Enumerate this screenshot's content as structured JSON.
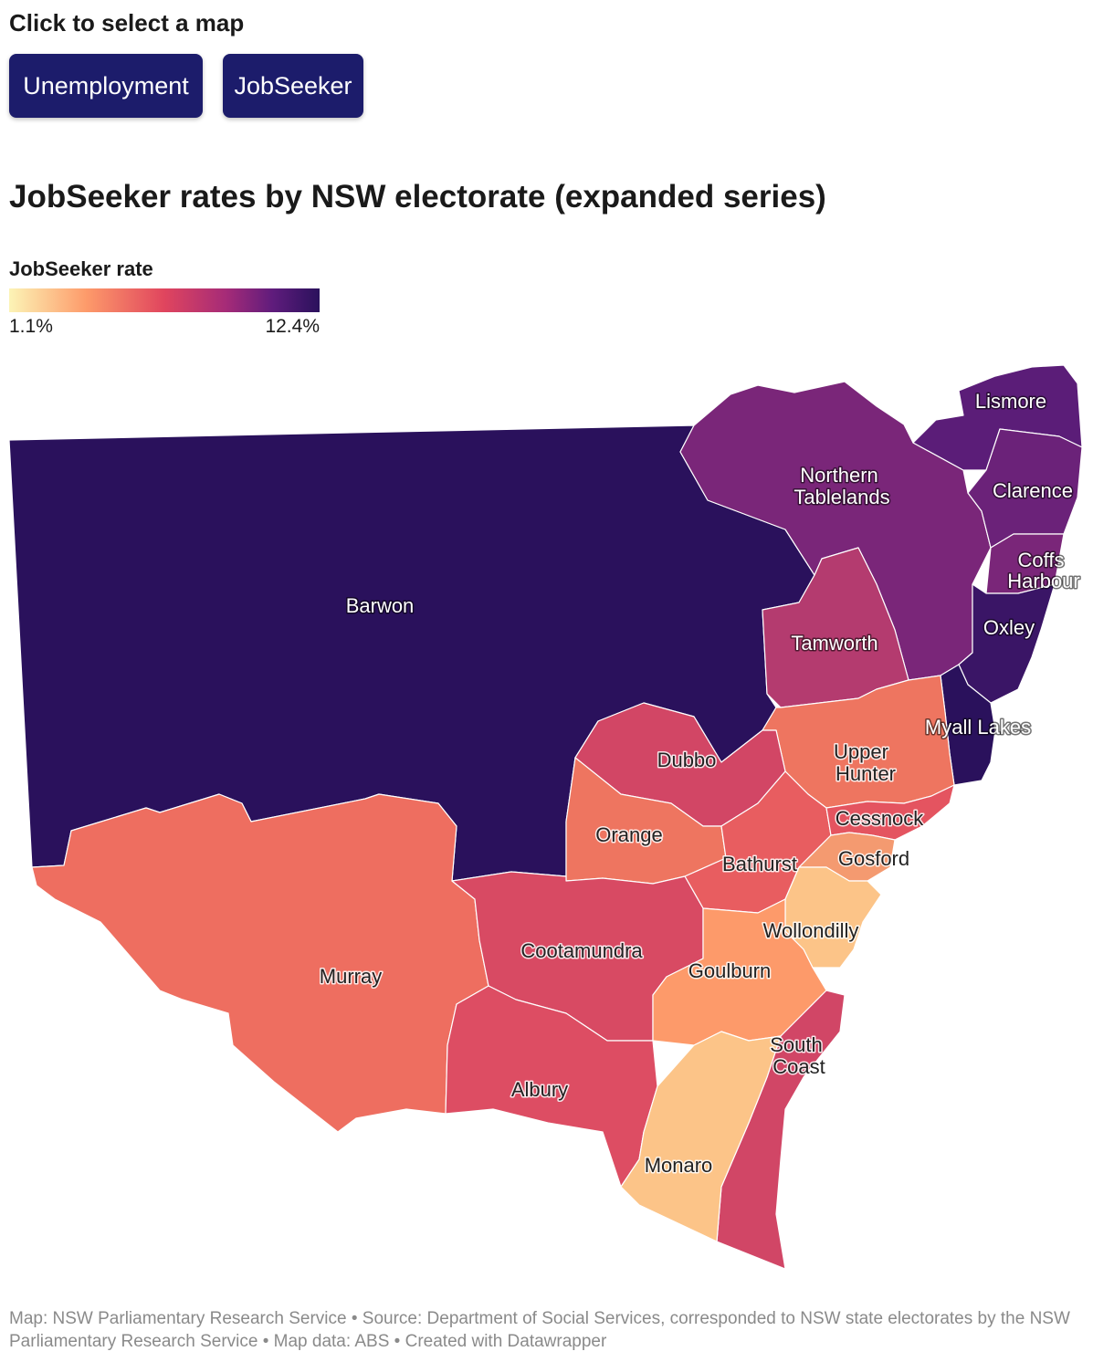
{
  "selector": {
    "label": "Click to select a map",
    "buttons": [
      "Unemployment",
      "JobSeeker"
    ]
  },
  "title": "JobSeeker rates by NSW electorate (expanded series)",
  "legend": {
    "title": "JobSeeker rate",
    "min": "1.1%",
    "max": "12.4%",
    "colors": [
      "#fcf4b6",
      "#fd9a6a",
      "#e0455e",
      "#a52b78",
      "#5f1c7c",
      "#2a115c"
    ]
  },
  "map": {
    "electorates": [
      {
        "name": "Barwon",
        "color": "#2a115c"
      },
      {
        "name": "Northern Tablelands",
        "color": "#7a2679"
      },
      {
        "name": "Lismore",
        "color": "#5b1d78"
      },
      {
        "name": "Clarence",
        "color": "#6b2279"
      },
      {
        "name": "Coffs Harbour",
        "color": "#7a2679"
      },
      {
        "name": "Oxley",
        "color": "#3a1566"
      },
      {
        "name": "Tamworth",
        "color": "#b43b6f"
      },
      {
        "name": "Myall Lakes",
        "color": "#2a115c"
      },
      {
        "name": "Upper Hunter",
        "color": "#ee7560"
      },
      {
        "name": "Dubbo",
        "color": "#d24665"
      },
      {
        "name": "Orange",
        "color": "#ee7560"
      },
      {
        "name": "Bathurst",
        "color": "#e85d60"
      },
      {
        "name": "Cessnock",
        "color": "#e45460"
      },
      {
        "name": "Gosford",
        "color": "#f49a70"
      },
      {
        "name": "Murray",
        "color": "#ee6e60"
      },
      {
        "name": "Cootamundra",
        "color": "#d84a63"
      },
      {
        "name": "Wollondilly",
        "color": "#fcc488"
      },
      {
        "name": "Goulburn",
        "color": "#fd9a6a"
      },
      {
        "name": "Albury",
        "color": "#dd4d63"
      },
      {
        "name": "South Coast",
        "color": "#d14666"
      },
      {
        "name": "Monaro",
        "color": "#fcc488"
      }
    ]
  },
  "footer": "Map: NSW Parliamentary Research Service • Source: Department of Social Services, corresponded to NSW state electorates by the NSW Parliamentary Research Service • Map data: ABS • Created with Datawrapper"
}
